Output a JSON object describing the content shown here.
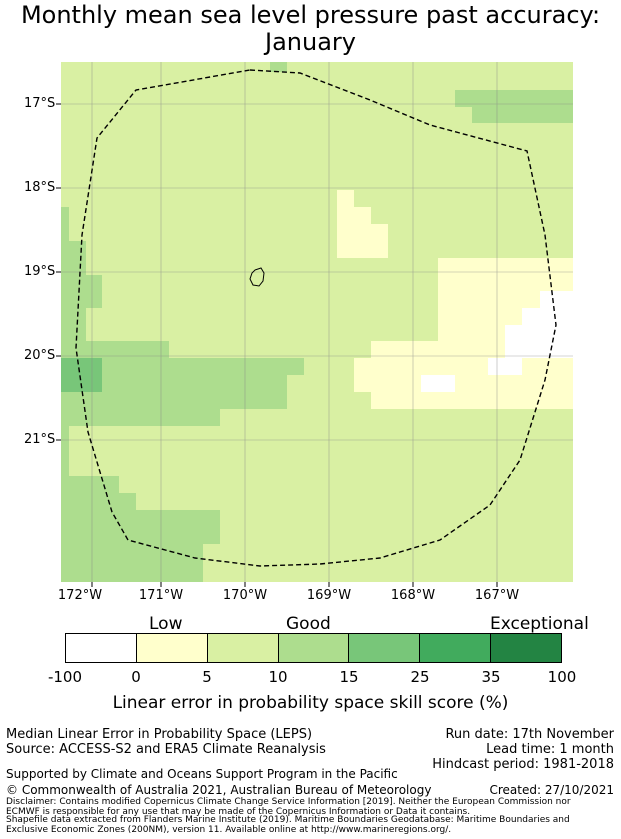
{
  "title": {
    "line1": "Monthly mean sea level pressure past accuracy:",
    "line2": "January"
  },
  "lat_labels": [
    "17°S",
    "18°S",
    "19°S",
    "20°S",
    "21°S"
  ],
  "lon_labels": [
    "172°W",
    "171°W",
    "170°W",
    "169°W",
    "168°W",
    "167°W"
  ],
  "legend": {
    "categories": [
      "Low",
      "Good",
      "Exceptional"
    ],
    "ticks": [
      "-100",
      "0",
      "5",
      "10",
      "15",
      "25",
      "35",
      "100"
    ],
    "colors": [
      "#ffffff",
      "#ffffcc",
      "#d9f0a3",
      "#addd8e",
      "#78c679",
      "#41ab5d",
      "#238443"
    ],
    "label": "Linear error in probability space skill score (%)"
  },
  "info": {
    "method": "Median Linear Error in Probability Space (LEPS)",
    "source": "Source: ACCESS-S2 and ERA5 Climate Reanalysis",
    "run_date": "Run date: 17th November",
    "lead_time": "Lead time: 1 month",
    "hindcast": "Hindcast period: 1981-2018",
    "support": "Supported by Climate and Oceans Support Program in the Pacific",
    "copyright": "© Commonwealth of Australia 2021, Australian Bureau of Meteorology",
    "created": "Created: 27/10/2021",
    "disclaimer": "Disclaimer: Contains modified Copernicus Climate Change Service Information [2019]. Neither the European Commission nor ECMWF is responsible for any use that may be made of the Copernicus Information or Data it contains.",
    "shapefile": "Shapefile data extracted from Flanders Marine Institute (2019). Maritime Boundaries Geodatabase: Maritime Boundaries and Exclusive Economic Zones (200NM), version 11. Available online at http://www.marineregions.org/."
  }
}
